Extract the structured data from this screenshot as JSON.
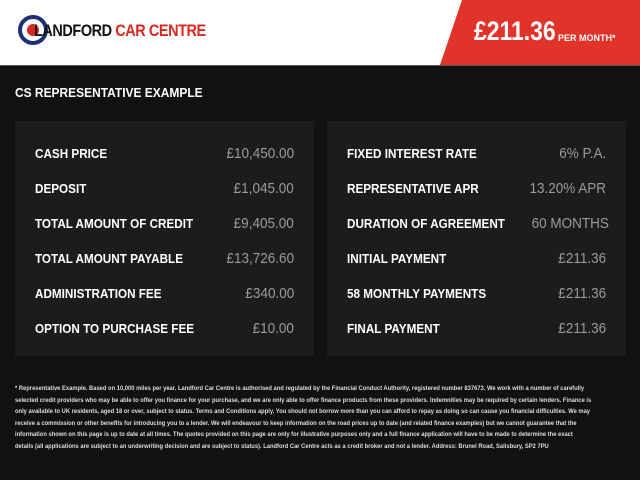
{
  "header": {
    "logo": {
      "part1": "LANDFORD",
      "part2": "CAR CENTRE"
    },
    "price": "£211.36",
    "per_month": "PER MONTH*",
    "colors": {
      "accent": "#e0332a",
      "navy": "#1e2f73"
    }
  },
  "section_title": "CS REPRESENTATIVE EXAMPLE",
  "left_panel": [
    {
      "label": "CASH PRICE",
      "value": "£10,450.00"
    },
    {
      "label": "DEPOSIT",
      "value": "£1,045.00"
    },
    {
      "label": "TOTAL AMOUNT OF CREDIT",
      "value": "£9,405.00"
    },
    {
      "label": "TOTAL AMOUNT PAYABLE",
      "value": "£13,726.60"
    },
    {
      "label": "ADMINISTRATION FEE",
      "value": "£340.00"
    },
    {
      "label": "OPTION TO PURCHASE FEE",
      "value": "£10.00"
    }
  ],
  "right_panel": [
    {
      "label": "FIXED INTEREST RATE",
      "value": "6% P.A."
    },
    {
      "label": "REPRESENTATIVE APR",
      "value": "13.20% APR"
    },
    {
      "label": "DURATION OF AGREEMENT",
      "value": "60 MONTHS"
    },
    {
      "label": "INITIAL PAYMENT",
      "value": "£211.36"
    },
    {
      "label": "58 MONTHLY PAYMENTS",
      "value": "£211.36"
    },
    {
      "label": "FINAL PAYMENT",
      "value": "£211.36"
    }
  ],
  "footer_lines": [
    "* Representative Example. Based on 10,000 miles per year. Landford Car Centre is authorised and regulated by the Financial Conduct Authority, registered number 837673. We work with a number of carefully",
    "selected credit providers who may be able to offer you finance for your purchase, and we are only able to offer finance products from these providers. Indemnities may be required by certain lenders. Finance is",
    "only available to UK residents, aged 18 or over, subject to status. Terms and Conditions apply. You should not borrow more than you can afford to repay as doing so can cause you financial difficulties. We may",
    "receive a commission or other benefits for introducing you to a lender. We will endeavour to keep information on the road prices up to date (and related finance examples) but we cannot guarantee that the",
    "information shown on this page is up to date at all times. The quotes provided on this page are only for illustrative purposes only and a full finance application will have to be made to determine the exact",
    "details (all applications are subject to an underwriting decision and are subject to status). Landford Car Centre acts as a credit broker and not a lender. Address: Brunel Road, Salisbury, SP2 7PU"
  ]
}
